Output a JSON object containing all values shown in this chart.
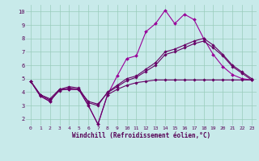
{
  "xlabel": "Windchill (Refroidissement éolien,°C)",
  "bg_color": "#c8eaea",
  "grid_color": "#99ccbb",
  "line_color_main": "#990099",
  "line_color_trend": "#660066",
  "xlim": [
    -0.5,
    23.5
  ],
  "ylim": [
    1.5,
    10.5
  ],
  "yticks": [
    2,
    3,
    4,
    5,
    6,
    7,
    8,
    9,
    10
  ],
  "xticks": [
    0,
    1,
    2,
    3,
    4,
    5,
    6,
    7,
    8,
    9,
    10,
    11,
    12,
    13,
    14,
    15,
    16,
    17,
    18,
    19,
    20,
    21,
    22,
    23
  ],
  "series_main": [
    4.8,
    3.7,
    3.3,
    4.2,
    4.2,
    4.2,
    3.0,
    1.6,
    3.8,
    5.2,
    6.5,
    6.7,
    8.5,
    9.1,
    10.1,
    9.1,
    9.8,
    9.4,
    8.0,
    6.8,
    5.9,
    5.3,
    5.0,
    4.9
  ],
  "series_trend1": [
    4.8,
    3.8,
    3.5,
    4.2,
    4.4,
    4.3,
    3.2,
    3.0,
    4.0,
    4.5,
    5.0,
    5.2,
    5.7,
    6.2,
    7.0,
    7.2,
    7.5,
    7.8,
    8.0,
    7.5,
    6.8,
    6.0,
    5.5,
    5.0
  ],
  "series_trend2": [
    4.8,
    3.8,
    3.4,
    4.1,
    4.3,
    4.2,
    3.3,
    3.1,
    3.95,
    4.4,
    4.85,
    5.1,
    5.55,
    6.0,
    6.8,
    7.0,
    7.3,
    7.6,
    7.8,
    7.3,
    6.7,
    5.9,
    5.4,
    4.9
  ],
  "series_flat": [
    4.8,
    3.7,
    3.3,
    4.2,
    4.2,
    4.2,
    3.0,
    1.6,
    3.8,
    4.2,
    4.5,
    4.7,
    4.8,
    4.9,
    4.9,
    4.9,
    4.9,
    4.9,
    4.9,
    4.9,
    4.9,
    4.9,
    4.9,
    4.9
  ]
}
